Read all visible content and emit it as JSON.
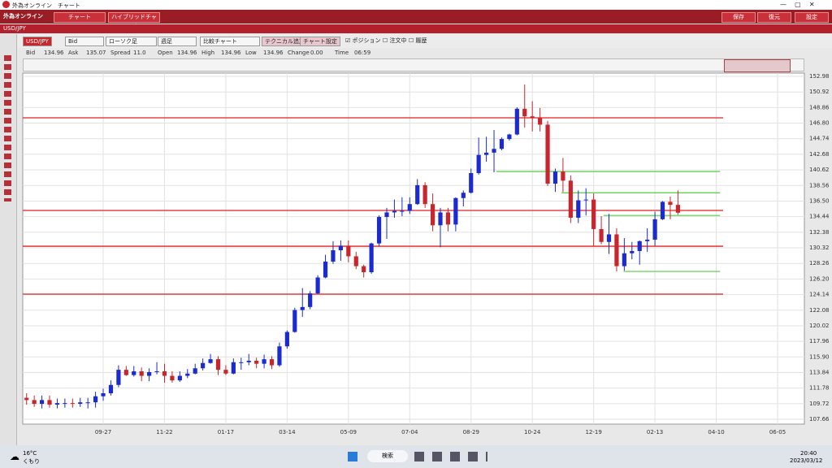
{
  "window": {
    "title": "外為オンライン　チャート"
  },
  "header": {
    "logo": "外為オンライン",
    "tabs": [
      "チャート",
      "ハイブリッドチャート"
    ],
    "buttons": [
      "保存",
      "復元",
      "設定"
    ]
  },
  "symbol_bar": {
    "symbol": "USD/JPY"
  },
  "toolbar": {
    "pair": "USD/JPY",
    "side": "Bid",
    "chart_kind": "ローソク足",
    "period": "週足",
    "compare": "比較チャート",
    "add_technical": "テクニカル追加",
    "chart_settings": "チャート設定",
    "checks": [
      "ポジション",
      "注文中",
      "履歴"
    ]
  },
  "info": [
    [
      "Bid",
      "134.96"
    ],
    [
      "Ask",
      "135.07"
    ],
    [
      "Spread",
      "11.0"
    ],
    [
      "Open",
      "134.96"
    ],
    [
      "High",
      "134.96"
    ],
    [
      "Low",
      "134.96"
    ],
    [
      "Change",
      "0.00"
    ],
    [
      "Time",
      "06:59"
    ]
  ],
  "chart_data": {
    "type": "candlestick",
    "up_color": "#1c2bd0",
    "down_color": "#c8262c",
    "grid": true,
    "ylim": [
      107.02,
      153.41
    ],
    "xlim": [
      -0.5,
      101.5
    ],
    "yticks": [
      152.98,
      150.92,
      148.86,
      {
        "value": 146.8,
        "label": "146.80"
      },
      144.74,
      142.68,
      140.62,
      138.56,
      {
        "value": 136.5,
        "label": "136.50"
      },
      134.44,
      132.38,
      130.32,
      128.26,
      {
        "value": 126.2,
        "label": "126.20"
      },
      124.14,
      122.08,
      120.02,
      117.96,
      {
        "value": 115.9,
        "label": "115.90"
      },
      113.84,
      111.78,
      109.72,
      107.66
    ],
    "xticks": [
      {
        "value": 10,
        "label": "09-27"
      },
      {
        "value": 18,
        "label": "11-22"
      },
      {
        "value": 26,
        "label": "01-17"
      },
      {
        "value": 34,
        "label": "03-14"
      },
      {
        "value": 42,
        "label": "05-09"
      },
      {
        "value": 50,
        "label": "07-04"
      },
      {
        "value": 58,
        "label": "08-29"
      },
      {
        "value": 66,
        "label": "10-24"
      },
      {
        "value": 74,
        "label": "12-19"
      },
      {
        "value": 82,
        "label": "02-13"
      },
      {
        "value": 90,
        "label": "04-10"
      },
      {
        "value": 98,
        "label": "06-05"
      }
    ],
    "open": [
      110.5,
      110.2,
      109.7,
      110.2,
      109.6,
      109.8,
      109.8,
      109.7,
      109.9,
      109.9,
      110.7,
      111.1,
      112.2,
      114.2,
      113.5,
      114.0,
      113.4,
      113.9,
      114.0,
      113.4,
      112.8,
      113.4,
      113.7,
      114.4,
      115.1,
      115.6,
      114.2,
      113.7,
      115.2,
      115.2,
      115.4,
      115.0,
      115.6,
      114.8,
      117.3,
      119.2,
      122.1,
      122.5,
      124.3,
      126.4,
      128.5,
      130.0,
      130.6,
      129.2,
      127.9,
      127.1,
      130.9,
      134.4,
      135.0,
      135.2,
      135.2,
      136.1,
      138.6,
      136.1,
      133.3,
      135.0,
      133.4,
      136.9,
      137.6,
      140.2,
      142.6,
      142.9,
      143.4,
      144.7,
      145.3,
      148.7,
      147.7,
      147.5,
      146.6,
      138.8,
      140.4,
      139.2,
      134.3,
      136.6,
      136.7,
      132.8,
      131.1,
      132.1,
      127.9,
      129.6,
      129.9,
      131.2,
      131.4,
      134.1,
      136.4,
      136.0
    ],
    "high": [
      111.1,
      110.8,
      110.8,
      110.8,
      110.4,
      110.4,
      110.4,
      110.5,
      110.5,
      111.3,
      111.7,
      112.8,
      114.8,
      114.7,
      114.7,
      114.5,
      114.4,
      115.2,
      115.0,
      114.0,
      114.0,
      114.3,
      115.0,
      115.7,
      116.3,
      116.0,
      114.8,
      115.7,
      115.8,
      116.3,
      115.8,
      116.2,
      116.0,
      117.8,
      119.4,
      122.4,
      125.0,
      124.6,
      126.7,
      129.4,
      131.2,
      131.3,
      131.3,
      129.8,
      128.1,
      131.0,
      134.6,
      135.6,
      136.7,
      137.0,
      137.0,
      139.4,
      139.0,
      137.5,
      135.6,
      135.6,
      137.0,
      137.9,
      140.8,
      144.9,
      145.0,
      145.9,
      144.9,
      145.4,
      148.9,
      151.9,
      149.7,
      148.8,
      147.1,
      140.8,
      142.2,
      139.9,
      137.9,
      138.2,
      137.5,
      134.5,
      134.8,
      132.9,
      131.6,
      131.1,
      131.3,
      132.9,
      135.1,
      136.5,
      137.1,
      137.9
    ],
    "low": [
      109.6,
      109.3,
      109.1,
      109.2,
      109.1,
      109.2,
      109.2,
      109.3,
      109.1,
      109.2,
      110.1,
      110.8,
      111.9,
      113.4,
      113.3,
      112.7,
      112.7,
      113.6,
      112.5,
      112.5,
      112.6,
      113.1,
      113.6,
      114.1,
      115.0,
      113.5,
      113.5,
      113.6,
      114.2,
      114.8,
      114.4,
      114.4,
      114.3,
      114.6,
      117.0,
      119.1,
      121.2,
      122.2,
      124.2,
      126.3,
      128.2,
      128.6,
      128.4,
      127.5,
      126.4,
      126.9,
      130.5,
      131.5,
      134.3,
      134.5,
      134.8,
      136.0,
      135.6,
      132.5,
      130.4,
      132.5,
      132.5,
      135.8,
      137.5,
      140.0,
      141.7,
      140.3,
      143.2,
      144.5,
      145.2,
      146.2,
      145.7,
      145.7,
      138.5,
      137.7,
      137.7,
      133.6,
      133.6,
      134.6,
      130.6,
      130.8,
      129.5,
      127.2,
      127.3,
      128.8,
      128.1,
      129.8,
      130.6,
      134.0,
      134.1,
      134.7
    ],
    "close": [
      110.2,
      109.7,
      110.2,
      109.6,
      109.8,
      109.8,
      109.7,
      109.9,
      109.9,
      110.7,
      111.1,
      112.2,
      114.2,
      113.5,
      114.0,
      113.4,
      113.9,
      114.0,
      113.4,
      112.8,
      113.4,
      113.7,
      114.4,
      115.1,
      115.6,
      114.2,
      113.7,
      115.2,
      115.2,
      115.4,
      115.0,
      115.6,
      114.8,
      117.3,
      119.2,
      122.1,
      122.5,
      124.3,
      126.4,
      128.5,
      130.0,
      130.6,
      129.2,
      127.9,
      127.1,
      130.9,
      134.4,
      135.0,
      135.2,
      135.2,
      136.1,
      138.6,
      136.1,
      133.3,
      135.0,
      133.4,
      136.9,
      137.6,
      140.2,
      142.6,
      142.9,
      143.4,
      144.7,
      145.3,
      148.7,
      147.7,
      147.5,
      146.6,
      138.8,
      140.4,
      139.2,
      134.3,
      136.6,
      136.7,
      132.8,
      131.1,
      132.1,
      127.9,
      129.6,
      129.9,
      131.2,
      131.4,
      134.1,
      136.4,
      136.0,
      134.96
    ],
    "levels": [
      {
        "price": 147.5,
        "color": "#e02020"
      },
      {
        "price": 135.26,
        "color": "#e02020"
      },
      {
        "price": 130.53,
        "color": "#e02020"
      },
      {
        "price": 124.2,
        "color": "#e02020"
      }
    ],
    "segments": [
      {
        "price": 140.4,
        "start": 61.3,
        "end": 90.5,
        "color": "#55cc44"
      },
      {
        "price": 137.6,
        "start": 69.8,
        "end": 90.5,
        "color": "#55cc44"
      },
      {
        "price": 134.6,
        "start": 75.3,
        "end": 90.5,
        "color": "#55cc44"
      },
      {
        "price": 127.2,
        "start": 77.9,
        "end": 90.5,
        "color": "#55cc44"
      }
    ]
  },
  "taskbar": {
    "temp": "16°C",
    "weather": "くもり",
    "search": "検索",
    "time": "20:40",
    "date": "2023/03/12"
  }
}
